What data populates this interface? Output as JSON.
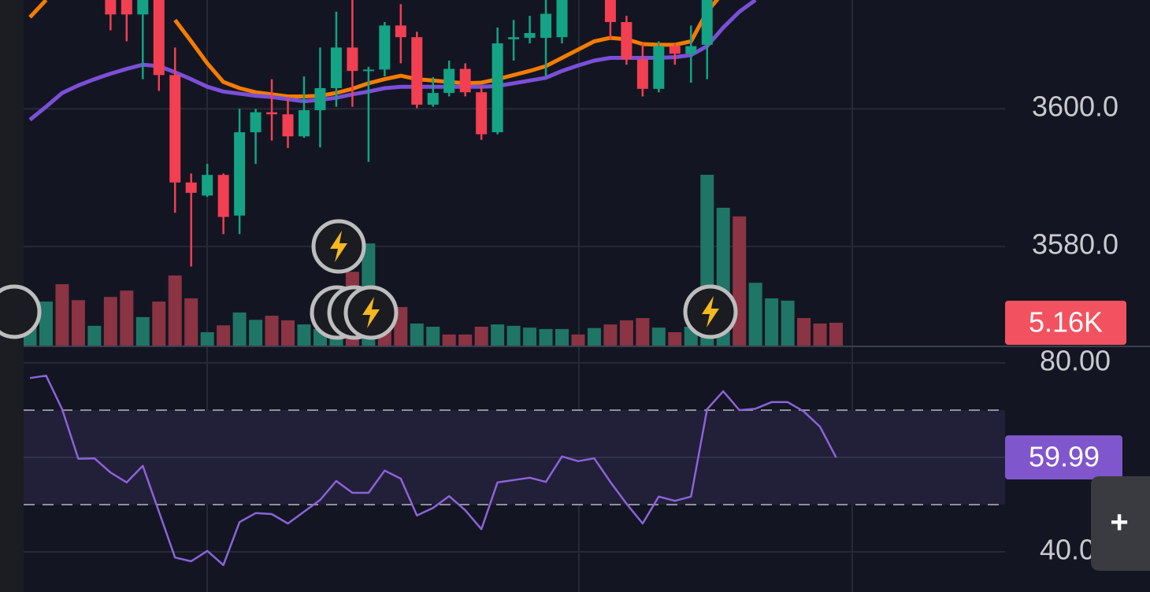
{
  "chart_data": [
    {
      "type": "candlestick",
      "ylim": [
        3565.5,
        3615.8
      ],
      "yticks": [
        {
          "value": 3600,
          "label": "3600.0"
        },
        {
          "value": 3580,
          "label": "3580.0"
        }
      ],
      "up_color": "#14a385",
      "down_color": "#f23f52",
      "ohlc": [
        null,
        null,
        null,
        null,
        null,
        [
          3615.8,
          3616.9,
          3611.4,
          3613.7
        ],
        [
          3616.3,
          3616.9,
          3609.8,
          3613.7
        ],
        [
          3613.7,
          3616.9,
          3604.3,
          3616.3
        ],
        [
          3616.3,
          3616.9,
          3602.6,
          3604.9
        ],
        [
          3604.9,
          3608.9,
          3584.9,
          3589.3
        ],
        [
          3589.3,
          3590.6,
          3577.1,
          3587.8
        ],
        [
          3587.4,
          3592.0,
          3587.2,
          3590.4
        ],
        [
          3590.4,
          3590.6,
          3581.8,
          3584.3
        ],
        [
          3584.5,
          3600.0,
          3581.8,
          3596.6
        ],
        [
          3596.6,
          3600.0,
          3592.0,
          3599.5
        ],
        [
          3599.5,
          3604.3,
          3595.4,
          3599.2
        ],
        [
          3599.2,
          3601.5,
          3594.3,
          3596.0
        ],
        [
          3596.0,
          3604.7,
          3595.8,
          3599.8
        ],
        [
          3599.8,
          3608.9,
          3594.4,
          3603.0
        ],
        [
          3603.0,
          3614.1,
          3600.3,
          3608.9
        ],
        [
          3608.9,
          3615.8,
          3600.3,
          3605.5
        ],
        [
          3605.5,
          3606.1,
          3592.3,
          3605.7
        ],
        [
          3605.7,
          3612.6,
          3604.7,
          3612.1
        ],
        [
          3612.1,
          3615.2,
          3606.6,
          3610.4
        ],
        [
          3610.4,
          3611.2,
          3600.1,
          3600.6
        ],
        [
          3600.6,
          3604.6,
          3600.3,
          3602.3
        ],
        [
          3602.3,
          3607.0,
          3601.8,
          3605.8
        ],
        [
          3605.8,
          3606.6,
          3601.8,
          3602.4
        ],
        [
          3602.4,
          3603.2,
          3595.5,
          3596.3
        ],
        [
          3596.6,
          3611.8,
          3596.3,
          3609.5
        ],
        [
          3610.1,
          3612.9,
          3607.0,
          3610.4
        ],
        [
          3610.3,
          3613.5,
          3609.5,
          3611.0
        ],
        [
          3610.3,
          3615.8,
          3604.7,
          3613.8
        ],
        [
          3610.4,
          3616.3,
          3609.5,
          3615.8
        ],
        null,
        null,
        [
          3615.8,
          3616.3,
          3610.1,
          3612.6
        ],
        [
          3612.6,
          3613.5,
          3606.4,
          3607.2
        ],
        [
          3607.2,
          3609.5,
          3601.8,
          3602.9
        ],
        [
          3602.9,
          3609.8,
          3602.4,
          3609.1
        ],
        [
          3609.1,
          3609.5,
          3606.4,
          3608.0
        ],
        [
          3608.0,
          3612.1,
          3603.8,
          3609.1
        ],
        [
          3609.3,
          3616.3,
          3604.3,
          3615.8
        ],
        null,
        null,
        null,
        null,
        null,
        null,
        null,
        null
      ],
      "series": [
        {
          "color": "#f57c00",
          "values": [
            3613.3,
            3615.8,
            null,
            null,
            null,
            null,
            null,
            null,
            null,
            3612.9,
            3609.8,
            3606.6,
            3603.9,
            3603.0,
            3602.4,
            3602.1,
            3601.8,
            3601.8,
            3601.9,
            3602.3,
            3602.9,
            3603.7,
            3604.3,
            3604.8,
            3604.3,
            3604.1,
            3603.9,
            3603.7,
            3603.8,
            3604.3,
            3604.9,
            3605.5,
            3606.2,
            3607.4,
            3608.6,
            3609.8,
            3610.3,
            3610.1,
            3609.4,
            3609.3,
            3609.3,
            3609.8,
            3614.1,
            3616.9,
            null,
            null,
            null,
            null,
            null,
            null,
            null
          ]
        },
        {
          "color": "#7b4fd8",
          "values": [
            3598.4,
            3600.3,
            3602.3,
            3603.4,
            3604.3,
            3605.1,
            3605.8,
            3606.4,
            3606.2,
            3605.3,
            3604.3,
            3603.2,
            3602.5,
            3602.2,
            3601.9,
            3601.7,
            3601.4,
            3601.1,
            3601.3,
            3601.6,
            3602.1,
            3602.5,
            3603.0,
            3603.2,
            3603.2,
            3603.2,
            3603.2,
            3603.2,
            3603.2,
            3603.3,
            3603.7,
            3604.1,
            3604.5,
            3605.5,
            3606.3,
            3607.0,
            3607.4,
            3607.4,
            3607.4,
            3607.4,
            3607.5,
            3607.8,
            3609.1,
            3611.8,
            3614.1,
            3615.8,
            null,
            null,
            null,
            null,
            null
          ]
        }
      ]
    },
    {
      "type": "bar",
      "ylim": [
        0,
        75.7
      ],
      "up_color": "#1f7566",
      "down_color": "#8a3444",
      "values": [
        8.3,
        9.8,
        13.6,
        10.1,
        4.5,
        10.8,
        12.2,
        6.4,
        9.8,
        15.5,
        10.5,
        3.1,
        4.6,
        7.4,
        5.8,
        6.7,
        5.7,
        4.8,
        3.8,
        3.4,
        16.3,
        22.5,
        8.3,
        8.6,
        5.0,
        4.3,
        2.6,
        2.6,
        4.3,
        4.8,
        4.5,
        4.1,
        3.8,
        3.8,
        2.6,
        4.0,
        4.8,
        5.7,
        6.2,
        4.1,
        3.1,
        4.3,
        37.5,
        30.3,
        28.4,
        13.9,
        10.5,
        10.0,
        6.2,
        5.0,
        5.16
      ],
      "directions": [
        "up",
        "up",
        "down",
        "down",
        "up",
        "down",
        "down",
        "up",
        "down",
        "down",
        "down",
        "up",
        "down",
        "up",
        "up",
        "down",
        "down",
        "up",
        "up",
        "up",
        "down",
        "up",
        "down",
        "down",
        "up",
        "up",
        "down",
        "down",
        "down",
        "up",
        "up",
        "up",
        "up",
        "up",
        "down",
        "up",
        "down",
        "down",
        "down",
        "up",
        "down",
        "up",
        "up",
        "up",
        "down",
        "up",
        "up",
        "up",
        "down",
        "down",
        "down"
      ],
      "value_labels": [
        null,
        null,
        null,
        null,
        null,
        null,
        null,
        null,
        null,
        null,
        null,
        null,
        null,
        null,
        null,
        null,
        null,
        null,
        null,
        null,
        null,
        null,
        null,
        null,
        null,
        null,
        null,
        null,
        null,
        null,
        null,
        null,
        null,
        null,
        null,
        null,
        null,
        null,
        null,
        null,
        null,
        null,
        null,
        null,
        null,
        null,
        null,
        null,
        null,
        null,
        "5.16K"
      ],
      "label_color": "#f2525f"
    },
    {
      "type": "line",
      "ylim": [
        31.5,
        83.5
      ],
      "yticks": [
        {
          "value": 80,
          "label": "80.00"
        },
        {
          "value": 40,
          "label": "40.00"
        }
      ],
      "gridlines": [
        60
      ],
      "levels": [
        70,
        50
      ],
      "band_color": "#221f38",
      "color": "#8b63d9",
      "values": [
        76.8,
        77.3,
        70.2,
        59.7,
        59.8,
        56.8,
        54.7,
        58.2,
        48.5,
        38.8,
        38.0,
        40.2,
        37.2,
        46.3,
        48.2,
        48.0,
        46.0,
        48.5,
        51.0,
        55.0,
        52.5,
        52.5,
        57.2,
        55.5,
        47.7,
        49.3,
        51.8,
        48.8,
        44.8,
        54.7,
        55.2,
        55.7,
        54.8,
        60.2,
        59.2,
        59.8,
        54.8,
        50.2,
        46.0,
        51.7,
        50.8,
        51.7,
        70.2,
        74.0,
        70.0,
        70.3,
        71.7,
        71.7,
        69.7,
        66.5,
        59.99
      ],
      "label_color": "#7f56cc"
    }
  ],
  "ui": {
    "zoom_button": "+"
  }
}
